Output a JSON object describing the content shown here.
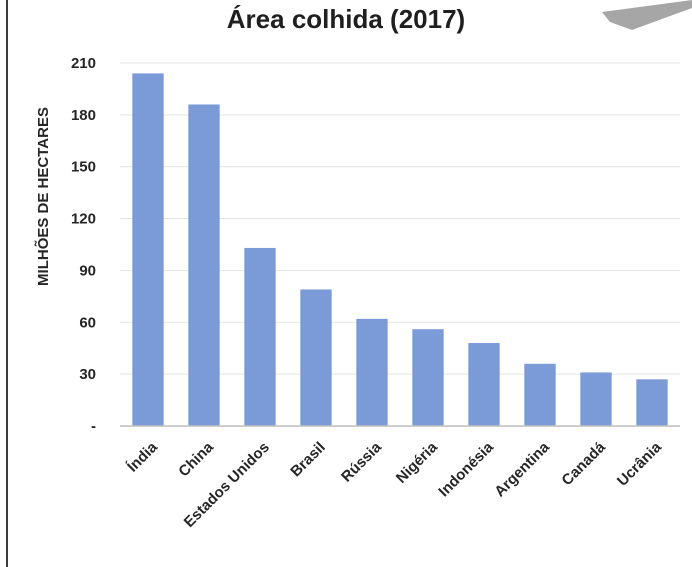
{
  "chart_data": {
    "type": "bar",
    "title": "Área colhida (2017)",
    "xlabel": "",
    "ylabel": "MILHÕES DE HECTARES",
    "categories": [
      "Índia",
      "China",
      "Estados Unidos",
      "Brasil",
      "Rússia",
      "Nigéria",
      "Indonésia",
      "Argentina",
      "Canadá",
      "Ucrânia"
    ],
    "values": [
      204,
      186,
      103,
      79,
      62,
      56,
      48,
      36,
      31,
      27
    ],
    "ylim": [
      0,
      210
    ],
    "yticks": [
      "-",
      "30",
      "60",
      "90",
      "120",
      "150",
      "180",
      "210"
    ],
    "grid": true,
    "bar_color": "#7b9ad8",
    "grid_color": "#e3e3e3",
    "axis_color": "#bfbfbf"
  }
}
